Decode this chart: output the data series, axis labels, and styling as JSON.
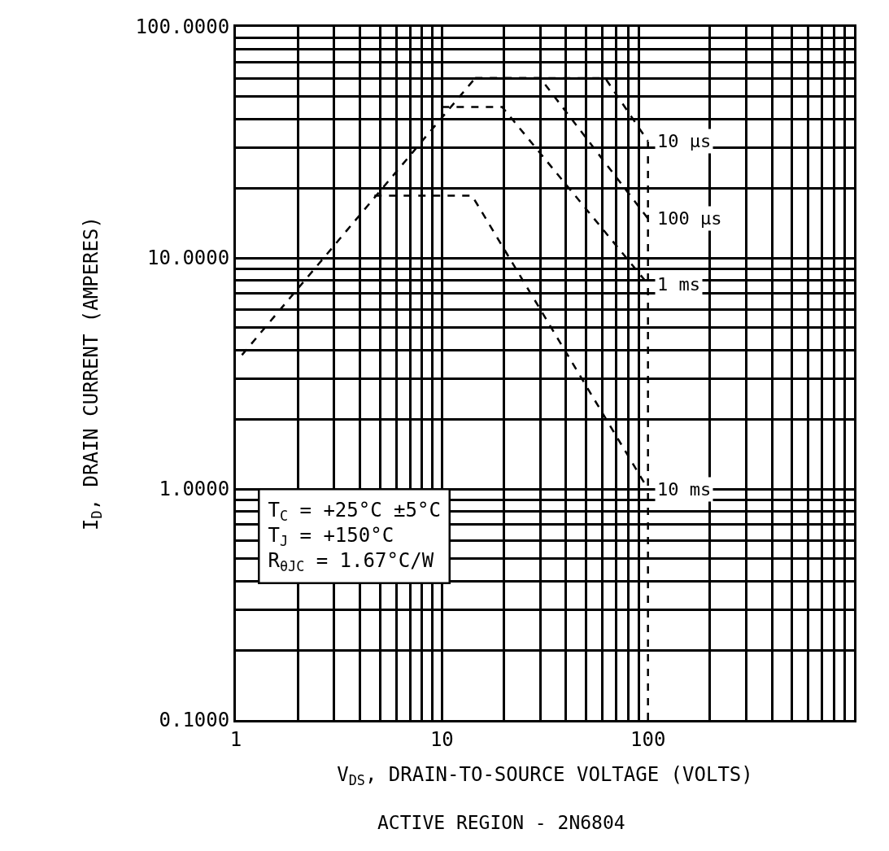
{
  "chart_data": {
    "type": "line",
    "title": "ACTIVE REGION - 2N6804",
    "xlabel": "V$_{DS}$, DRAIN-TO-SOURCE VOLTAGE (VOLTS)",
    "ylabel": "I$_{D}$, DRAIN CURRENT (AMPERES)",
    "log": "xy",
    "xlim": [
      1,
      1000
    ],
    "ylim": [
      0.1,
      100
    ],
    "xticks": [
      1,
      10,
      100,
      {
        "value": 1000,
        "label": null
      }
    ],
    "yticks": [
      {
        "value": 0.1,
        "label": "0.1000"
      },
      {
        "value": 1,
        "label": "1.0000"
      },
      {
        "value": 10,
        "label": "10.0000"
      },
      {
        "value": 100,
        "label": "100.0000"
      }
    ],
    "grid": true,
    "legend": false,
    "marker": "none",
    "line_style": "dashed",
    "series": [
      {
        "color": "#000000",
        "x": [
          1.07,
          14.5
        ],
        "values": [
          3.8,
          60
        ]
      },
      {
        "name": "10 µs",
        "color": "#000000",
        "x": [
          14.5,
          62,
          100
        ],
        "values": [
          60,
          60,
          32
        ]
      },
      {
        "name": "100 µs",
        "color": "#000000",
        "x": [
          14.5,
          30,
          100
        ],
        "values": [
          60,
          60,
          14.8
        ]
      },
      {
        "name": "1 ms",
        "color": "#000000",
        "x": [
          10,
          19.6,
          100
        ],
        "values": [
          45,
          45,
          7.7
        ]
      },
      {
        "name": "10 ms",
        "color": "#000000",
        "x": [
          4.7,
          14,
          100
        ],
        "values": [
          18.6,
          18.6,
          1.0
        ]
      },
      {
        "color": "#000000",
        "x": [
          100,
          100
        ],
        "values": [
          0.1,
          32
        ]
      }
    ],
    "annotations": [
      "T$_{C}$ = +25°C ±5°C",
      "T$_{J}$ = +150°C",
      "R$_{θJC}$ = 1.67°C/W"
    ]
  }
}
